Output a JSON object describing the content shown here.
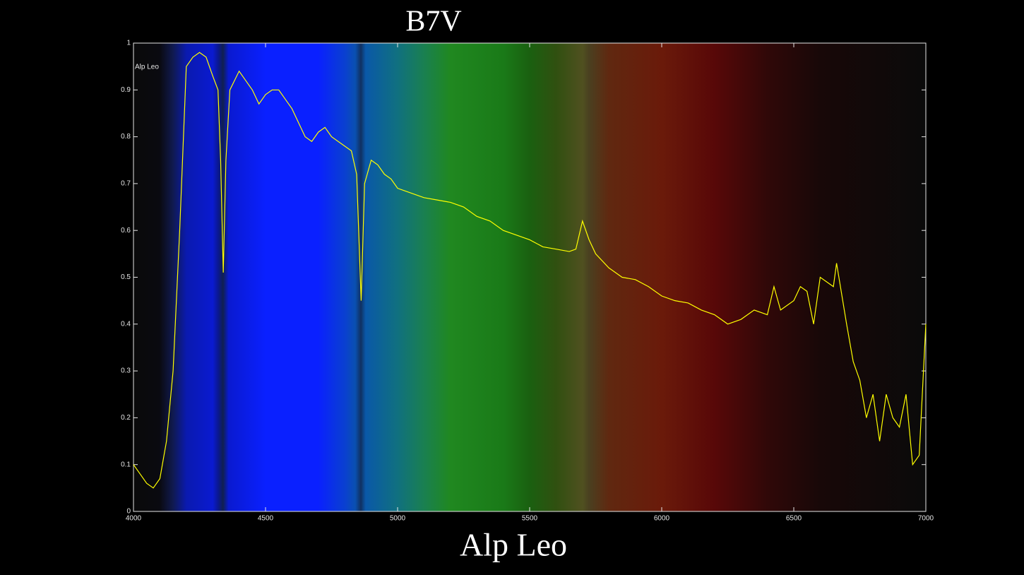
{
  "chart_data": {
    "type": "line",
    "title": "B7V",
    "x_label": "Alp Leo",
    "annotation": "Alp Leo",
    "xlim": [
      4000,
      7000
    ],
    "ylim": [
      0,
      1
    ],
    "xticks": [
      4000,
      4500,
      5000,
      5500,
      6000,
      6500,
      7000
    ],
    "yticks": [
      0,
      0.1,
      0.2,
      0.3,
      0.4,
      0.5,
      0.6,
      0.7,
      0.8,
      0.9,
      1
    ],
    "x": [
      4000,
      4025,
      4050,
      4075,
      4100,
      4125,
      4150,
      4175,
      4200,
      4225,
      4250,
      4275,
      4300,
      4320,
      4330,
      4340,
      4350,
      4365,
      4400,
      4425,
      4450,
      4475,
      4500,
      4525,
      4550,
      4575,
      4600,
      4625,
      4650,
      4675,
      4700,
      4725,
      4750,
      4775,
      4800,
      4825,
      4845,
      4862,
      4875,
      4900,
      4925,
      4950,
      4975,
      5000,
      5050,
      5100,
      5150,
      5200,
      5250,
      5300,
      5350,
      5400,
      5450,
      5500,
      5550,
      5600,
      5650,
      5675,
      5700,
      5725,
      5750,
      5800,
      5850,
      5900,
      5950,
      6000,
      6050,
      6100,
      6150,
      6200,
      6250,
      6300,
      6350,
      6400,
      6425,
      6450,
      6500,
      6525,
      6550,
      6575,
      6600,
      6650,
      6662,
      6700,
      6725,
      6750,
      6775,
      6800,
      6825,
      6850,
      6875,
      6900,
      6925,
      6950,
      6975,
      7000
    ],
    "series": [
      {
        "name": "Alp Leo",
        "color": "#ffff00",
        "values": [
          0.1,
          0.08,
          0.06,
          0.05,
          0.07,
          0.15,
          0.3,
          0.6,
          0.95,
          0.97,
          0.98,
          0.97,
          0.93,
          0.9,
          0.75,
          0.51,
          0.75,
          0.9,
          0.94,
          0.92,
          0.9,
          0.87,
          0.89,
          0.9,
          0.9,
          0.88,
          0.86,
          0.83,
          0.8,
          0.79,
          0.81,
          0.82,
          0.8,
          0.79,
          0.78,
          0.77,
          0.72,
          0.45,
          0.7,
          0.75,
          0.74,
          0.72,
          0.71,
          0.69,
          0.68,
          0.67,
          0.665,
          0.66,
          0.65,
          0.63,
          0.62,
          0.6,
          0.59,
          0.58,
          0.565,
          0.56,
          0.555,
          0.56,
          0.62,
          0.58,
          0.55,
          0.52,
          0.5,
          0.495,
          0.48,
          0.46,
          0.45,
          0.445,
          0.43,
          0.42,
          0.4,
          0.41,
          0.43,
          0.42,
          0.48,
          0.43,
          0.45,
          0.48,
          0.47,
          0.4,
          0.5,
          0.48,
          0.53,
          0.4,
          0.32,
          0.28,
          0.2,
          0.25,
          0.15,
          0.25,
          0.2,
          0.18,
          0.25,
          0.1,
          0.12,
          0.4
        ]
      }
    ],
    "axis_color": "#e6e6e6"
  }
}
